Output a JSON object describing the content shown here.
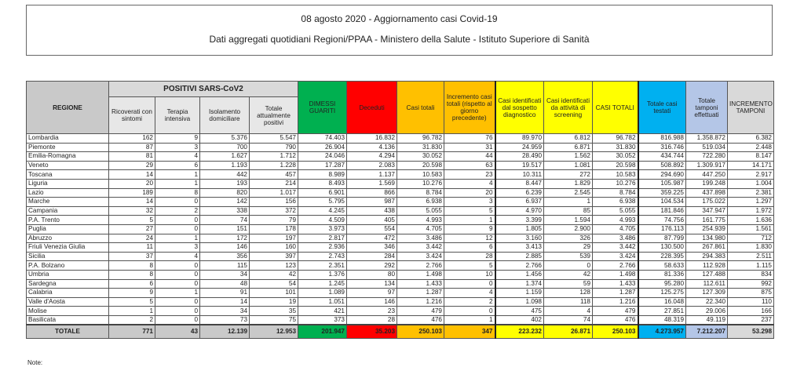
{
  "title": "08 agosto 2020 - Aggiornamento casi Covid-19",
  "subtitle": "Dati aggregati quotidiani Regioni/PPAA - Ministero della Salute - Istituto Superiore di Sanità",
  "colors": {
    "dimessi": "#00b050",
    "deceduti": "#ff0000",
    "casi_totali": "#ffc000",
    "identificati": "#ffff00",
    "testati": "#00b0f0",
    "tamponi": "#b4c6e7",
    "incremento_tamponi": "#d9d9d9"
  },
  "table": {
    "group_header": "POSITIVI SARS-CoV2",
    "headers": [
      "REGIONE",
      "Ricoverati con sintomi",
      "Terapia intensiva",
      "Isolamento domiciliare",
      "Totale attualmente positivi",
      "DIMESSI GUARITI",
      "Deceduti",
      "Casi totali",
      "Incremento casi totali (rispetto al giorno precedente)",
      "Casi identificati dal sospetto diagnostico",
      "Casi identificati da attività di screening",
      "CASI TOTALI",
      "Totale casi testati",
      "Totale tamponi effettuati",
      "INCREMENTO TAMPONI"
    ],
    "rows": [
      [
        "Lombardia",
        "162",
        "9",
        "5.376",
        "5.547",
        "74.403",
        "16.832",
        "96.782",
        "76",
        "89.970",
        "6.812",
        "96.782",
        "816.988",
        "1.358.872",
        "6.382"
      ],
      [
        "Piemonte",
        "87",
        "3",
        "700",
        "790",
        "26.904",
        "4.136",
        "31.830",
        "31",
        "24.959",
        "6.871",
        "31.830",
        "316.746",
        "519.034",
        "2.448"
      ],
      [
        "Emilia-Romagna",
        "81",
        "4",
        "1.627",
        "1.712",
        "24.046",
        "4.294",
        "30.052",
        "44",
        "28.490",
        "1.562",
        "30.052",
        "434.744",
        "722.280",
        "8.147"
      ],
      [
        "Veneto",
        "29",
        "6",
        "1.193",
        "1.228",
        "17.287",
        "2.083",
        "20.598",
        "63",
        "19.517",
        "1.081",
        "20.598",
        "508.892",
        "1.309.917",
        "14.171"
      ],
      [
        "Toscana",
        "14",
        "1",
        "442",
        "457",
        "8.989",
        "1.137",
        "10.583",
        "23",
        "10.311",
        "272",
        "10.583",
        "294.690",
        "447.250",
        "2.917"
      ],
      [
        "Liguria",
        "20",
        "1",
        "193",
        "214",
        "8.493",
        "1.569",
        "10.276",
        "4",
        "8.447",
        "1.829",
        "10.276",
        "105.987",
        "199.248",
        "1.004"
      ],
      [
        "Lazio",
        "189",
        "8",
        "820",
        "1.017",
        "6.901",
        "866",
        "8.784",
        "20",
        "6.239",
        "2.545",
        "8.784",
        "359.225",
        "437.898",
        "2.381"
      ],
      [
        "Marche",
        "14",
        "0",
        "142",
        "156",
        "5.795",
        "987",
        "6.938",
        "3",
        "6.937",
        "1",
        "6.938",
        "104.534",
        "175.022",
        "1.297"
      ],
      [
        "Campania",
        "32",
        "2",
        "338",
        "372",
        "4.245",
        "438",
        "5.055",
        "5",
        "4.970",
        "85",
        "5.055",
        "181.846",
        "347.947",
        "1.972"
      ],
      [
        "P.A. Trento",
        "5",
        "0",
        "74",
        "79",
        "4.509",
        "405",
        "4.993",
        "1",
        "3.399",
        "1.594",
        "4.993",
        "74.756",
        "161.775",
        "1.636"
      ],
      [
        "Puglia",
        "27",
        "0",
        "151",
        "178",
        "3.973",
        "554",
        "4.705",
        "9",
        "1.805",
        "2.900",
        "4.705",
        "176.113",
        "254.939",
        "1.561"
      ],
      [
        "Abruzzo",
        "24",
        "1",
        "172",
        "197",
        "2.817",
        "472",
        "3.486",
        "12",
        "3.160",
        "326",
        "3.486",
        "87.799",
        "134.980",
        "712"
      ],
      [
        "Friuli Venezia Giulia",
        "11",
        "3",
        "146",
        "160",
        "2.936",
        "346",
        "3.442",
        "6",
        "3.413",
        "29",
        "3.442",
        "130.500",
        "267.861",
        "1.830"
      ],
      [
        "Sicilia",
        "37",
        "4",
        "356",
        "397",
        "2.743",
        "284",
        "3.424",
        "28",
        "2.885",
        "539",
        "3.424",
        "228.395",
        "294.383",
        "2.511"
      ],
      [
        "P.A. Bolzano",
        "8",
        "0",
        "115",
        "123",
        "2.351",
        "292",
        "2.766",
        "5",
        "2.766",
        "0",
        "2.766",
        "58.633",
        "112.928",
        "1.115"
      ],
      [
        "Umbria",
        "8",
        "0",
        "34",
        "42",
        "1.376",
        "80",
        "1.498",
        "10",
        "1.456",
        "42",
        "1.498",
        "81.336",
        "127.488",
        "834"
      ],
      [
        "Sardegna",
        "6",
        "0",
        "48",
        "54",
        "1.245",
        "134",
        "1.433",
        "0",
        "1.374",
        "59",
        "1.433",
        "95.280",
        "112.611",
        "992"
      ],
      [
        "Calabria",
        "9",
        "1",
        "91",
        "101",
        "1.089",
        "97",
        "1.287",
        "4",
        "1.159",
        "128",
        "1.287",
        "125.275",
        "127.309",
        "875"
      ],
      [
        "Valle d'Aosta",
        "5",
        "0",
        "14",
        "19",
        "1.051",
        "146",
        "1.216",
        "2",
        "1.098",
        "118",
        "1.216",
        "16.048",
        "22.340",
        "110"
      ],
      [
        "Molise",
        "1",
        "0",
        "34",
        "35",
        "421",
        "23",
        "479",
        "0",
        "475",
        "4",
        "479",
        "27.851",
        "29.006",
        "166"
      ],
      [
        "Basilicata",
        "2",
        "0",
        "73",
        "75",
        "373",
        "28",
        "476",
        "1",
        "402",
        "74",
        "476",
        "48.319",
        "49.119",
        "237"
      ]
    ],
    "total": [
      "TOTALE",
      "771",
      "43",
      "12.139",
      "12.953",
      "201.947",
      "35.203",
      "250.103",
      "347",
      "223.232",
      "26.871",
      "250.103",
      "4.273.957",
      "7.212.207",
      "53.298"
    ]
  },
  "note_label": "Note:"
}
